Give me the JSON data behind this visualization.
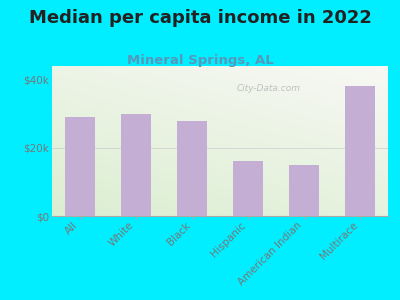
{
  "title": "Median per capita income in 2022",
  "subtitle": "Mineral Springs, AL",
  "categories": [
    "All",
    "White",
    "Black",
    "Hispanic",
    "American Indian",
    "Multirace"
  ],
  "values": [
    29000,
    30000,
    28000,
    16000,
    15000,
    38000
  ],
  "bar_color": "#c4aed4",
  "background_outer": "#00eeff",
  "title_fontsize": 13,
  "subtitle_fontsize": 9.5,
  "tick_label_fontsize": 7.5,
  "ytick_labels": [
    "$0",
    "$20k",
    "$40k"
  ],
  "ytick_values": [
    0,
    20000,
    40000
  ],
  "ylim": [
    0,
    44000
  ],
  "watermark": "City-Data.com",
  "title_color": "#222222",
  "subtitle_color": "#5599bb",
  "tick_color": "#777777"
}
